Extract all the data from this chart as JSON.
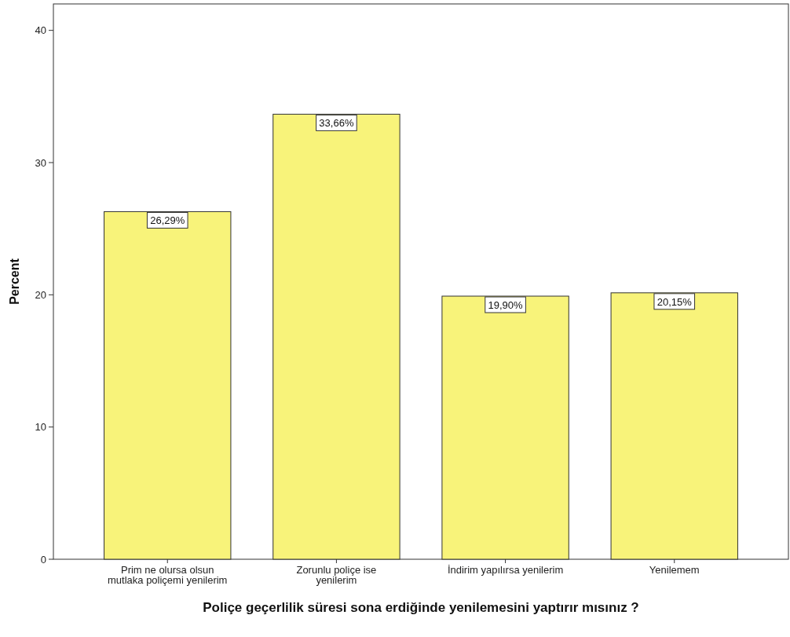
{
  "chart_data": {
    "type": "bar",
    "xlabel": "Poliçe geçerlilik süresi sona erdiğinde yenilemesini yaptırır mısınız ?",
    "ylabel": "Percent",
    "categories": [
      "Prim ne olursa olsun\nmutlaka poliçemi yenilerim",
      "Zorunlu poliçe ise\nyenilerim",
      "İndirim yapılırsa yenilerim",
      "Yenilemem"
    ],
    "values": [
      26.29,
      33.66,
      19.9,
      20.15
    ],
    "value_labels": [
      "26,29%",
      "33,66%",
      "19,90%",
      "20,15%"
    ],
    "color": "#f8f37a",
    "ylim": [
      0,
      42
    ],
    "yticks": [
      0,
      10,
      20,
      30,
      40
    ],
    "grid": false
  }
}
